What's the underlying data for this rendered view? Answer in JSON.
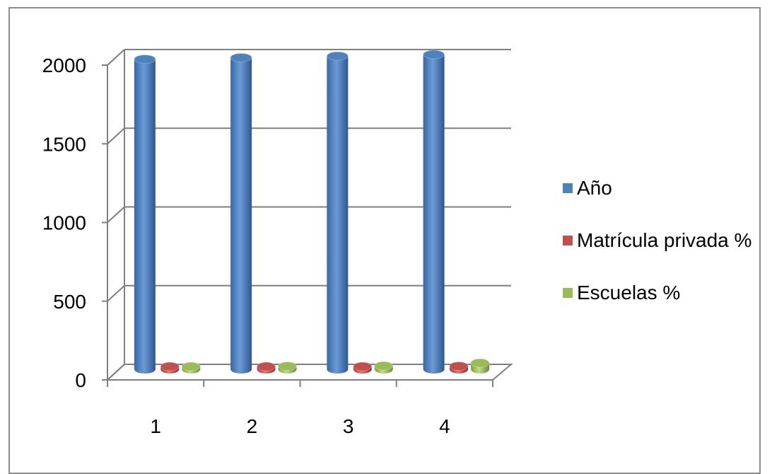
{
  "chart_data": {
    "type": "bar",
    "style": "3d-cylinder",
    "categories": [
      "1",
      "2",
      "3",
      "4"
    ],
    "series": [
      {
        "name": "Año",
        "color": "#4f81bd",
        "values": [
          1970,
          1980,
          1990,
          2000
        ]
      },
      {
        "name": "Matrícula privada %",
        "color": "#c0504d",
        "values": [
          8,
          9,
          12,
          20
        ]
      },
      {
        "name": "Escuelas %",
        "color": "#9bbb59",
        "values": [
          18,
          20,
          22,
          40
        ]
      }
    ],
    "yticks": [
      "0",
      "500",
      "1000",
      "1500",
      "2000"
    ],
    "ylim": [
      0,
      2000
    ],
    "grid": true,
    "legend_position": "right"
  }
}
